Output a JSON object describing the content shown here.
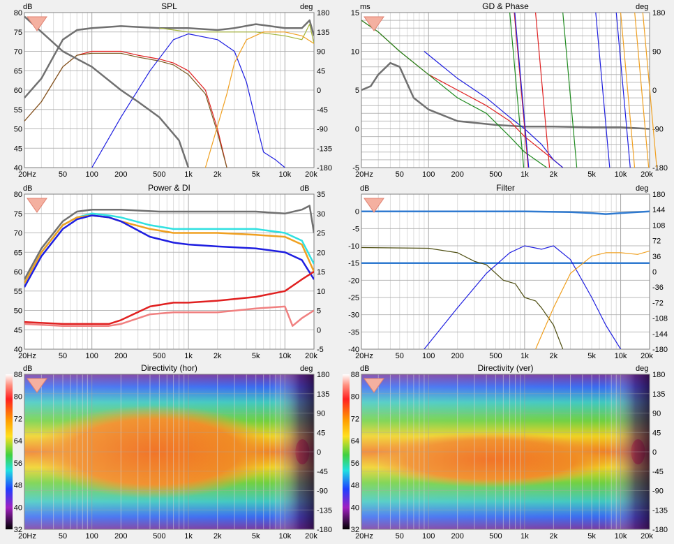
{
  "colors": {
    "background": "#f0f0f0",
    "plot_bg": "#ffffff",
    "grid_major": "#a8a8a8",
    "grid_minor": "#dcdcdc",
    "gray_thick": "#707070",
    "olive": "#a5b53a",
    "red": "#e02020",
    "brown": "#7a5a20",
    "green": "#1e8a1e",
    "blue": "#1e1ee0",
    "orange": "#f0a020",
    "cyan": "#30e0e0",
    "pink": "#f08080",
    "steel": "#2f7ad0",
    "darkolive": "#4d4d10"
  },
  "x_ticks": [
    "20Hz",
    "50",
    "100",
    "200",
    "500",
    "1k",
    "2k",
    "5k",
    "10k",
    "20k"
  ],
  "chart_data": [
    {
      "id": "spl",
      "type": "line",
      "title": "SPL",
      "y_left_unit": "dB",
      "y_right_unit": "deg",
      "y_left_ticks": [
        "80",
        "75",
        "70",
        "65",
        "60",
        "55",
        "50",
        "45",
        "40"
      ],
      "y_right_ticks": [
        "180",
        "135",
        "90",
        "45",
        "0",
        "-45",
        "-90",
        "-135",
        "-180"
      ],
      "ylim": [
        40,
        80
      ],
      "y2lim": [
        -180,
        180
      ],
      "xlim": [
        20,
        20000
      ],
      "x_scale": "log",
      "series": [
        {
          "color": "gray_thick",
          "x": [
            20,
            30,
            50,
            70,
            100,
            200,
            500,
            1000,
            2000,
            3000,
            5000,
            10000,
            15000,
            18000,
            20000
          ],
          "values": [
            58,
            63,
            73,
            75.5,
            76,
            76.5,
            76,
            76,
            75.5,
            76,
            77,
            76,
            76,
            78,
            74
          ]
        },
        {
          "color": "olive",
          "x": [
            500,
            1000,
            2000,
            5000,
            10000,
            15000,
            18000,
            20000
          ],
          "values": [
            76,
            75,
            75,
            75,
            74,
            73,
            77,
            72
          ]
        },
        {
          "color": "red",
          "x": [
            20,
            30,
            50,
            70,
            100,
            200,
            300,
            500,
            700,
            1000,
            1500,
            2000,
            2500
          ],
          "values": [
            52,
            57,
            66,
            69,
            70,
            70,
            69,
            68,
            67,
            65,
            60,
            50,
            40
          ]
        },
        {
          "color": "brown",
          "x": [
            20,
            30,
            50,
            70,
            100,
            200,
            300,
            500,
            700,
            1000,
            1500,
            2000,
            2500
          ],
          "values": [
            52,
            57,
            66,
            69,
            69.5,
            69.5,
            68.5,
            67.5,
            66.5,
            64,
            59,
            49,
            40
          ]
        },
        {
          "color": "blue",
          "x": [
            100,
            200,
            400,
            700,
            1000,
            2000,
            3000,
            4000,
            5000,
            6000,
            8000,
            10000
          ],
          "values": [
            40,
            53,
            65,
            73,
            74.5,
            73,
            70,
            62,
            52,
            44,
            42,
            40
          ]
        },
        {
          "color": "orange",
          "x": [
            1500,
            2500,
            3000,
            4000,
            6000,
            10000,
            15000,
            20000
          ],
          "values": [
            40,
            59,
            67,
            73,
            75,
            75,
            74,
            72
          ]
        },
        {
          "color": "gray_thick",
          "x": [
            20,
            50,
            100,
            200,
            300,
            500,
            800,
            1000
          ],
          "values": [
            79,
            70,
            66,
            60,
            57,
            53,
            47,
            40
          ]
        }
      ]
    },
    {
      "id": "gd",
      "type": "line",
      "title": "GD & Phase",
      "y_left_unit": "ms",
      "y_right_unit": "deg",
      "y_left_ticks": [
        "15",
        "10",
        "5",
        "0",
        "-5"
      ],
      "y_right_ticks": [
        "180",
        "90",
        "0",
        "-90",
        "-180"
      ],
      "ylim": [
        -5,
        15
      ],
      "y2lim": [
        -180,
        180
      ],
      "xlim": [
        20,
        20000
      ],
      "x_scale": "log",
      "series": [
        {
          "color": "gray_thick",
          "x": [
            20,
            25,
            30,
            40,
            50,
            70,
            100,
            200,
            500,
            1000,
            2000,
            5000,
            10000,
            20000
          ],
          "values": [
            5,
            5.5,
            7,
            8.5,
            8,
            4,
            2.5,
            1,
            0.5,
            0.3,
            0.3,
            0.2,
            0.2,
            0
          ]
        },
        {
          "color": "red",
          "x": [
            20,
            30,
            50,
            100,
            200,
            400,
            700,
            1000,
            2000,
            2500
          ],
          "values": [
            14,
            12.5,
            10,
            7,
            5,
            3,
            1,
            -1,
            -4,
            -5
          ]
        },
        {
          "color": "green",
          "x": [
            20,
            30,
            50,
            100,
            200,
            400,
            700,
            1000,
            1700
          ],
          "values": [
            14,
            12.5,
            10,
            7,
            4,
            2,
            -1,
            -3,
            -5
          ]
        },
        {
          "color": "blue",
          "x": [
            90,
            200,
            400,
            700,
            1000,
            1500,
            2000,
            2500
          ],
          "values": [
            10,
            6.5,
            4,
            1.5,
            0,
            -2,
            -4,
            -5
          ]
        }
      ]
    },
    {
      "id": "power",
      "type": "line",
      "title": "Power & DI",
      "y_left_unit": "dB",
      "y_right_unit": "dB",
      "y_left_ticks": [
        "80",
        "75",
        "70",
        "65",
        "60",
        "55",
        "50",
        "45",
        "40"
      ],
      "y_right_ticks": [
        "35",
        "30",
        "25",
        "20",
        "15",
        "10",
        "5",
        "0",
        "-5"
      ],
      "ylim": [
        40,
        80
      ],
      "y2lim": [
        -5,
        35
      ],
      "xlim": [
        20,
        20000
      ],
      "x_scale": "log",
      "series": [
        {
          "color": "gray_thick",
          "x": [
            20,
            30,
            50,
            70,
            100,
            200,
            500,
            1000,
            2000,
            5000,
            10000,
            15000,
            18000,
            20000
          ],
          "values": [
            58,
            66,
            73,
            75.5,
            76,
            76,
            75.5,
            75.5,
            75.5,
            75.5,
            75,
            76,
            77,
            70
          ]
        },
        {
          "color": "cyan",
          "x": [
            20,
            30,
            50,
            70,
            100,
            150,
            200,
            400,
            700,
            1000,
            2000,
            5000,
            10000,
            15000,
            20000
          ],
          "values": [
            57,
            65,
            72,
            74,
            75,
            74.5,
            74,
            72,
            71,
            71,
            71,
            71,
            70,
            68,
            62
          ]
        },
        {
          "color": "orange",
          "x": [
            20,
            30,
            50,
            70,
            100,
            150,
            200,
            400,
            700,
            1000,
            2000,
            5000,
            10000,
            15000,
            20000
          ],
          "values": [
            57,
            65,
            72,
            74,
            74.5,
            74,
            73,
            71,
            70,
            70,
            70,
            69.5,
            69,
            67,
            60
          ]
        },
        {
          "color": "blue",
          "x": [
            20,
            30,
            50,
            70,
            100,
            150,
            200,
            400,
            700,
            1000,
            2000,
            5000,
            10000,
            15000,
            20000
          ],
          "values": [
            56,
            64,
            71,
            73.5,
            74.5,
            74,
            73,
            69,
            67.5,
            67,
            66.5,
            66,
            65,
            63,
            58
          ]
        },
        {
          "color": "red",
          "x": [
            20,
            50,
            100,
            150,
            200,
            400,
            700,
            1000,
            2000,
            5000,
            10000,
            15000,
            20000
          ],
          "values": [
            47,
            46.5,
            46.5,
            46.5,
            47.5,
            51,
            52,
            52,
            52.5,
            53.5,
            55,
            58,
            60
          ]
        },
        {
          "color": "pink",
          "x": [
            20,
            50,
            100,
            150,
            200,
            400,
            700,
            1000,
            2000,
            5000,
            10000,
            12000,
            15000,
            20000
          ],
          "values": [
            46.5,
            46,
            46,
            46,
            46.5,
            49,
            49.5,
            49.5,
            49.5,
            50.5,
            51,
            46,
            48,
            50
          ]
        }
      ]
    },
    {
      "id": "filter",
      "type": "line",
      "title": "Filter",
      "y_left_unit": "dB",
      "y_right_unit": "deg",
      "y_left_ticks": [
        "0",
        "-5",
        "-10",
        "-15",
        "-20",
        "-25",
        "-30",
        "-35",
        "-40"
      ],
      "y_right_ticks": [
        "180",
        "144",
        "108",
        "72",
        "36",
        "0",
        "-36",
        "-72",
        "-108",
        "-144",
        "-180"
      ],
      "ylim": [
        -40,
        5
      ],
      "y2lim": [
        -180,
        180
      ],
      "xlim": [
        20,
        20000
      ],
      "x_scale": "log",
      "series": [
        {
          "color": "steel",
          "x": [
            20,
            1000,
            3000,
            5000,
            7000,
            10000,
            20000
          ],
          "values": [
            0,
            0,
            -0.2,
            -0.5,
            -0.8,
            -0.5,
            0
          ]
        },
        {
          "color": "steel",
          "x": [
            20,
            5000,
            20000
          ],
          "values": [
            -15,
            -15,
            -15
          ]
        },
        {
          "color": "darkolive",
          "x": [
            20,
            100,
            200,
            300,
            400,
            600,
            800,
            1000,
            1300,
            1500,
            2000,
            2500
          ],
          "values": [
            -10.5,
            -10.7,
            -12,
            -14.5,
            -15.5,
            -20,
            -21,
            -25,
            -26,
            -28,
            -33,
            -40
          ]
        },
        {
          "color": "blue",
          "x": [
            90,
            200,
            400,
            700,
            1000,
            1500,
            2000,
            3000,
            5000,
            7000,
            10000
          ],
          "values": [
            -40,
            -28,
            -18,
            -12,
            -10,
            -11,
            -10,
            -14,
            -25,
            -33,
            -40
          ]
        },
        {
          "color": "orange",
          "x": [
            1300,
            2000,
            3000,
            5000,
            7000,
            10000,
            15000,
            20000
          ],
          "values": [
            -40,
            -28,
            -18,
            -13,
            -12,
            -12,
            -12.5,
            -11.5
          ]
        }
      ]
    },
    {
      "id": "dir_hor",
      "type": "heatmap",
      "title": "Directivity (hor)",
      "y_left_unit": "dB",
      "y_right_unit": "deg",
      "color_scale_ticks": [
        "88",
        "80",
        "72",
        "64",
        "56",
        "48",
        "40",
        "32"
      ],
      "y_right_ticks": [
        "180",
        "135",
        "90",
        "45",
        "0",
        "-45",
        "-90",
        "-135",
        "-180"
      ],
      "xlim": [
        20,
        20000
      ],
      "x_scale": "log"
    },
    {
      "id": "dir_ver",
      "type": "heatmap",
      "title": "Directivity (ver)",
      "y_left_unit": "dB",
      "y_right_unit": "deg",
      "color_scale_ticks": [
        "88",
        "80",
        "72",
        "64",
        "56",
        "48",
        "40",
        "32"
      ],
      "y_right_ticks": [
        "180",
        "135",
        "90",
        "45",
        "0",
        "-45",
        "-90",
        "-135",
        "-180"
      ],
      "xlim": [
        20,
        20000
      ],
      "x_scale": "log"
    }
  ]
}
